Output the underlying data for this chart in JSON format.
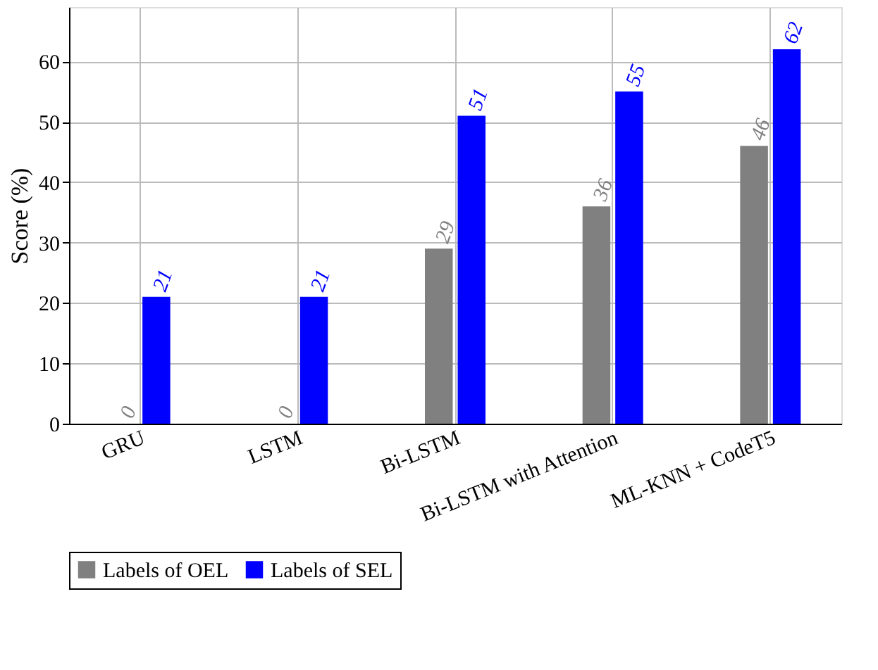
{
  "chart_data": {
    "type": "bar",
    "ylabel": "Score (%)",
    "categories": [
      "GRU",
      "LSTM",
      "Bi-LSTM",
      "Bi-LSTM with Attention",
      "ML-KNN + CodeT5"
    ],
    "series": [
      {
        "name": "Labels of OEL",
        "color": "#808080",
        "values": [
          0,
          0,
          29,
          36,
          46
        ]
      },
      {
        "name": "Labels of SEL",
        "color": "#0000ff",
        "values": [
          21,
          21,
          51,
          55,
          62
        ]
      }
    ],
    "ylim": [
      0,
      69
    ],
    "yticks": [
      0,
      10,
      20,
      30,
      40,
      50,
      60
    ],
    "grid": true,
    "legend": "bottom",
    "data_labels": true
  }
}
